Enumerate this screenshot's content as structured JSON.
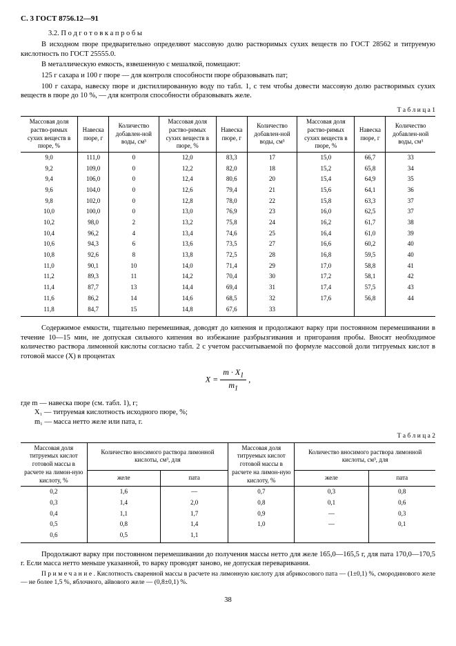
{
  "header": "С. 3 ГОСТ 8756.12—91",
  "section_num": "3.2.",
  "section_title": "П о д г о т о в к а   п р о б ы",
  "p1": "В исходном пюре предварительно определяют массовую долю растворимых сухих веществ по ГОСТ 28562 и титруемую кислотность по ГОСТ 25555.0.",
  "p2": "В металлическую емкость, взвешенную с мешалкой, помещают:",
  "p3": "125 г сахара и 100 г пюре — для контроля способности пюре образовывать пат;",
  "p4": "100 г сахара, навеску пюре и дистиллированную воду по табл. 1, с тем чтобы довести массовую долю растворимых сухих веществ в пюре до 10 %, — для контроля способности образовывать желе.",
  "tbl1_label": "Т а б л и ц а  1",
  "t1_headers": [
    "Массовая доля раство-римых сухих веществ в пюре, %",
    "Навеска пюре, г",
    "Количество добавлен-ной воды, см³",
    "Массовая доля раство-римых сухих веществ в пюре, %",
    "Навеска пюре, г",
    "Количество добавлен-ной воды, см³",
    "Массовая доля раство-римых сухих веществ в пюре, %",
    "Навеска пюре, г",
    "Количество добавлен-ной воды, см³"
  ],
  "t1_rows": [
    [
      "9,0",
      "111,0",
      "0",
      "12,0",
      "83,3",
      "17",
      "15,0",
      "66,7",
      "33"
    ],
    [
      "9,2",
      "109,0",
      "0",
      "12,2",
      "82,0",
      "18",
      "15,2",
      "65,8",
      "34"
    ],
    [
      "9,4",
      "106,0",
      "0",
      "12,4",
      "80,6",
      "20",
      "15,4",
      "64,9",
      "35"
    ],
    [
      "9,6",
      "104,0",
      "0",
      "12,6",
      "79,4",
      "21",
      "15,6",
      "64,1",
      "36"
    ],
    [
      "9,8",
      "102,0",
      "0",
      "12,8",
      "78,0",
      "22",
      "15,8",
      "63,3",
      "37"
    ],
    [
      "10,0",
      "100,0",
      "0",
      "13,0",
      "76,9",
      "23",
      "16,0",
      "62,5",
      "37"
    ],
    [
      "10,2",
      "98,0",
      "2",
      "13,2",
      "75,8",
      "24",
      "16,2",
      "61,7",
      "38"
    ],
    [
      "10,4",
      "96,2",
      "4",
      "13,4",
      "74,6",
      "25",
      "16,4",
      "61,0",
      "39"
    ],
    [
      "10,6",
      "94,3",
      "6",
      "13,6",
      "73,5",
      "27",
      "16,6",
      "60,2",
      "40"
    ],
    [
      "10,8",
      "92,6",
      "8",
      "13,8",
      "72,5",
      "28",
      "16,8",
      "59,5",
      "40"
    ],
    [
      "11,0",
      "90,1",
      "10",
      "14,0",
      "71,4",
      "29",
      "17,0",
      "58,8",
      "41"
    ],
    [
      "11,2",
      "89,3",
      "11",
      "14,2",
      "70,4",
      "30",
      "17,2",
      "58,1",
      "42"
    ],
    [
      "11,4",
      "87,7",
      "13",
      "14,4",
      "69,4",
      "31",
      "17,4",
      "57,5",
      "43"
    ],
    [
      "11,6",
      "86,2",
      "14",
      "14,6",
      "68,5",
      "32",
      "17,6",
      "56,8",
      "44"
    ],
    [
      "11,8",
      "84,7",
      "15",
      "14,8",
      "67,6",
      "33",
      "",
      "",
      ""
    ]
  ],
  "p5": "Содержимое емкости, тщательно перемешивая, доводят до кипения и продолжают варку при постоянном перемешивании в течение 10—15 мин, не допуская сильного кипения во избежание разбрызгивания и пригорания пробы. Вносят необходимое количество раствора лимонной кислоты согласно табл. 2 с учетом рассчитываемой по формуле массовой доли титруемых кислот в готовой массе (X) в процентах",
  "formula": "X = (m · X₁) / m₁ ,",
  "where_m": "где m — навеска пюре (см. табл. 1), г;",
  "where_x1": "X₁ — титруемая кислотность исходного пюре, %;",
  "where_m1": "m₁ — масса нетто желе или пата, г.",
  "tbl2_label": "Т а б л и ц а  2",
  "t2_h1": "Массовая доля титруемых кислот готовой массы в расчете на лимон-ную кислоту, %",
  "t2_h2": "Количество вносимого раствора лимонной кислоты, см³, для",
  "t2_h3": "Массовая доля титруемых кислот готовой массы в расчете на лимон-ную кислоту, %",
  "t2_h4": "Количество вносимого раствора лимонной кислоты, см³, для",
  "t2_sub": [
    "желе",
    "пата",
    "желе",
    "пата"
  ],
  "t2_rows": [
    [
      "0,2",
      "1,6",
      "—",
      "0,7",
      "0,3",
      "0,8"
    ],
    [
      "0,3",
      "1,4",
      "2,0",
      "0,8",
      "0,1",
      "0,6"
    ],
    [
      "0,4",
      "1,1",
      "1,7",
      "0,9",
      "—",
      "0,3"
    ],
    [
      "0,5",
      "0,8",
      "1,4",
      "1,0",
      "—",
      "0,1"
    ],
    [
      "0,6",
      "0,5",
      "1,1",
      "",
      "",
      ""
    ]
  ],
  "p6": "Продолжают варку при постоянном перемешивании до получения массы нетто для желе 165,0—165,5 г, для пата 170,0—170,5 г. Если масса нетто меньше указанной, то варку проводят заново, не допуская переваривания.",
  "p7": "П р и м е ч а н и е . Кислотность сваренной массы в расчете на лимонную кислоту для абрикосового пата — (1±0,1) %, смородинового желе — не более 1,5 %, яблочного, айвового желе — (0,8±0,1) %.",
  "pagenum": "38"
}
